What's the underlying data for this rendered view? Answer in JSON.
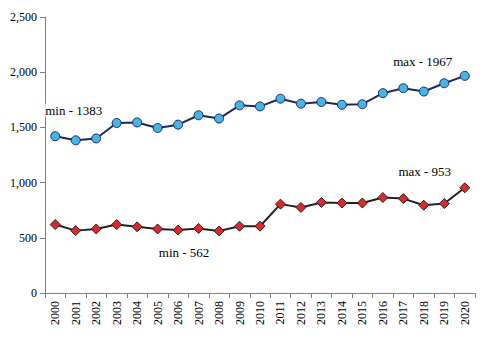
{
  "chart_data": {
    "type": "line",
    "categories": [
      "2000",
      "2001",
      "2002",
      "2003",
      "2004",
      "2005",
      "2006",
      "2007",
      "2008",
      "2009",
      "2010",
      "2011",
      "2012",
      "2013",
      "2014",
      "2015",
      "2016",
      "2017",
      "2018",
      "2019",
      "2020"
    ],
    "series": [
      {
        "color": "#45b4e6",
        "marker": "circle",
        "values": [
          1420,
          1383,
          1400,
          1540,
          1545,
          1495,
          1525,
          1610,
          1580,
          1700,
          1690,
          1760,
          1715,
          1730,
          1705,
          1710,
          1810,
          1855,
          1825,
          1900,
          1967
        ]
      },
      {
        "color": "#e0282a",
        "marker": "diamond",
        "values": [
          620,
          565,
          580,
          620,
          600,
          580,
          570,
          585,
          562,
          605,
          605,
          805,
          775,
          820,
          815,
          815,
          865,
          855,
          795,
          810,
          953
        ]
      }
    ],
    "annotations": [
      {
        "text": "min - 1383",
        "x": "2001",
        "y": 1383
      },
      {
        "text": "max - 1967",
        "x": "2020",
        "y": 1967
      },
      {
        "text": "min - 562",
        "x": "2008",
        "y": 562
      },
      {
        "text": "max - 953",
        "x": "2020",
        "y": 953
      }
    ],
    "ylim": [
      0,
      2500
    ],
    "yticks": [
      0,
      500,
      1000,
      1500,
      2000,
      2500
    ],
    "grid": false,
    "legend": false
  }
}
